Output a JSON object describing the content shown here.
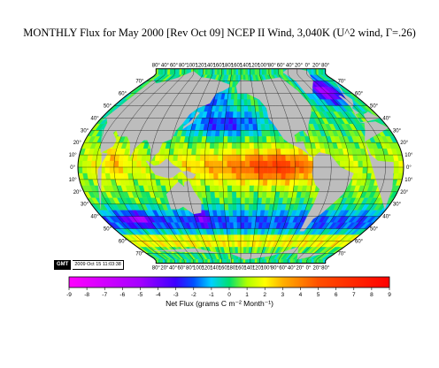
{
  "title": "MONTHLY Flux for May 2000 [Rev Oct 09] NCEP II Wind, 3,040K (U^2 wind, Γ=.26)",
  "timestamp": {
    "badge": "GMT",
    "text": "2009 Oct 15 11:03:38"
  },
  "map": {
    "projection": "Robinson (Pacific-centered)",
    "top_lon_labels": [
      "80°",
      "40°",
      "60°",
      "80°",
      "100°",
      "120°",
      "140°",
      "160°",
      "180°",
      "160°",
      "140°",
      "120°",
      "100°",
      "80°",
      "60°",
      "40°",
      "20°",
      "0°",
      "20°",
      "80°"
    ],
    "bottom_lon_labels": [
      "80°",
      "20°",
      "40°",
      "60°",
      "80°",
      "100°",
      "120°",
      "140°",
      "160°",
      "180°",
      "160°",
      "140°",
      "120°",
      "100°",
      "80°",
      "60°",
      "40°",
      "20°",
      "0°",
      "20°",
      "80°"
    ],
    "left_lat_labels": [
      "70°",
      "60°",
      "50°",
      "40°",
      "30°",
      "20°",
      "10°",
      "0°",
      "10°",
      "20°",
      "30°",
      "40°",
      "50°",
      "60°",
      "70°"
    ],
    "right_lat_labels": [
      "70°",
      "60°",
      "50°",
      "40°",
      "30°",
      "20°",
      "10°",
      "0°",
      "10°",
      "20°",
      "30°",
      "40°",
      "50°",
      "60°",
      "70°"
    ],
    "colors": {
      "land": "#bdbdbd",
      "outline": "#000000",
      "grid": "#000000"
    }
  },
  "colorbar": {
    "label": "Net Flux (grams C m⁻² Month⁻¹)",
    "range": [
      -9,
      9
    ],
    "ticks": [
      "-9",
      "-8",
      "-7",
      "-6",
      "-5",
      "-4",
      "-3",
      "-2",
      "-1",
      "0",
      "1",
      "2",
      "3",
      "4",
      "5",
      "6",
      "7",
      "8",
      "9"
    ],
    "colors": [
      {
        "value": -9,
        "color": "#ff00ff"
      },
      {
        "value": -5,
        "color": "#a400ff"
      },
      {
        "value": -3,
        "color": "#3c00ff"
      },
      {
        "value": -2,
        "color": "#0050ff"
      },
      {
        "value": -1,
        "color": "#00d0ff"
      },
      {
        "value": 0,
        "color": "#00e070"
      },
      {
        "value": 1,
        "color": "#b0ff00"
      },
      {
        "value": 2,
        "color": "#ffff00"
      },
      {
        "value": 3,
        "color": "#ffb000"
      },
      {
        "value": 5,
        "color": "#ff5000"
      },
      {
        "value": 9,
        "color": "#ff0000"
      }
    ]
  }
}
